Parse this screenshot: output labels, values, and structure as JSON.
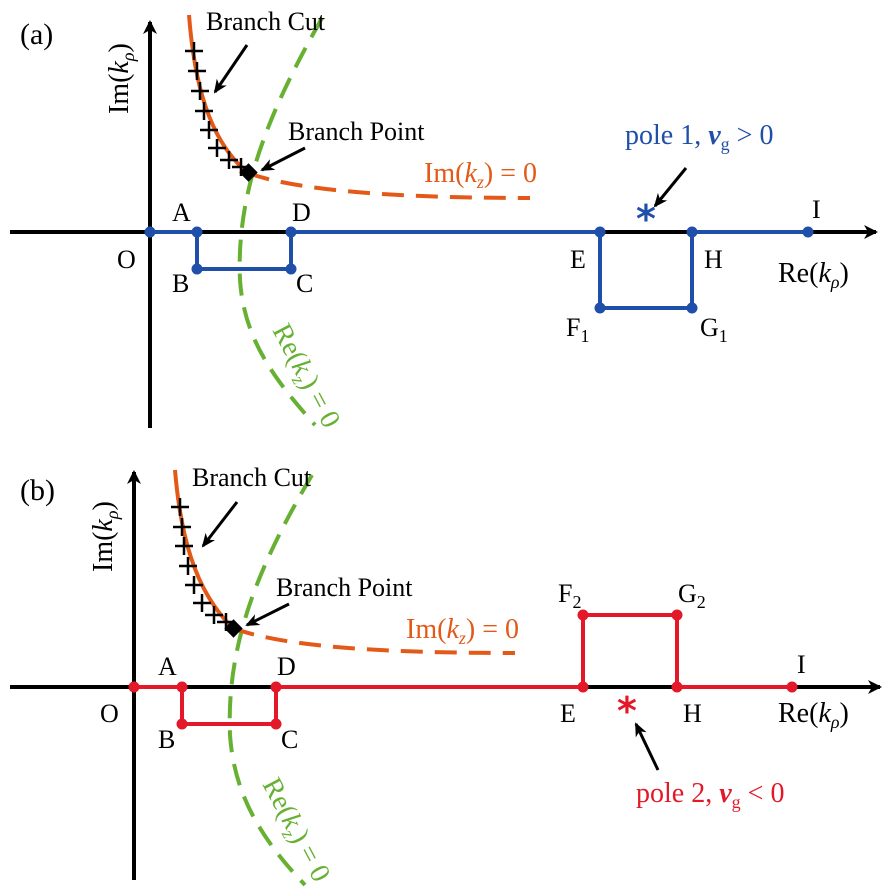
{
  "colors": {
    "axis": "#000000",
    "orange": "#e35a18",
    "green": "#66b032",
    "blue": "#1f4fa8",
    "red": "#e3192a"
  },
  "panel_a": {
    "panel_label": "(a)",
    "y_axis": {
      "prefix": "Im(",
      "var": "k",
      "sub": "ρ",
      "suffix": ")"
    },
    "x_axis": {
      "prefix": "Re(",
      "var": "k",
      "sub": "ρ",
      "suffix": ")"
    },
    "branch_cut": "Branch Cut",
    "branch_point": "Branch Point",
    "im_kz": {
      "prefix": "Im(",
      "var": "k",
      "sub": "z",
      "suffix": ") = 0"
    },
    "re_kz": {
      "prefix": "Re(",
      "var": "k",
      "sub": "z",
      "suffix": ") = 0"
    },
    "pole": {
      "prefix": "pole 1, ",
      "var": "v",
      "sub": "g",
      "suffix": " > 0"
    },
    "points": {
      "O": "O",
      "A": "A",
      "B": "B",
      "C": "C",
      "D": "D",
      "E": "E",
      "F": "F",
      "F_sub": "1",
      "G": "G",
      "G_sub": "1",
      "H": "H",
      "I": "I"
    }
  },
  "panel_b": {
    "panel_label": "(b)",
    "y_axis": {
      "prefix": "Im(",
      "var": "k",
      "sub": "ρ",
      "suffix": ")"
    },
    "x_axis": {
      "prefix": "Re(",
      "var": "k",
      "sub": "ρ",
      "suffix": ")"
    },
    "branch_cut": "Branch Cut",
    "branch_point": "Branch Point",
    "im_kz": {
      "prefix": "Im(",
      "var": "k",
      "sub": "z",
      "suffix": ") = 0"
    },
    "re_kz": {
      "prefix": "Re(",
      "var": "k",
      "sub": "z",
      "suffix": ") = 0"
    },
    "pole": {
      "prefix": "pole 2, ",
      "var": "v",
      "sub": "g",
      "suffix": " < 0"
    },
    "points": {
      "O": "O",
      "A": "A",
      "B": "B",
      "C": "C",
      "D": "D",
      "E": "E",
      "F": "F",
      "F_sub": "2",
      "G": "G",
      "G_sub": "2",
      "H": "H",
      "I": "I"
    }
  }
}
